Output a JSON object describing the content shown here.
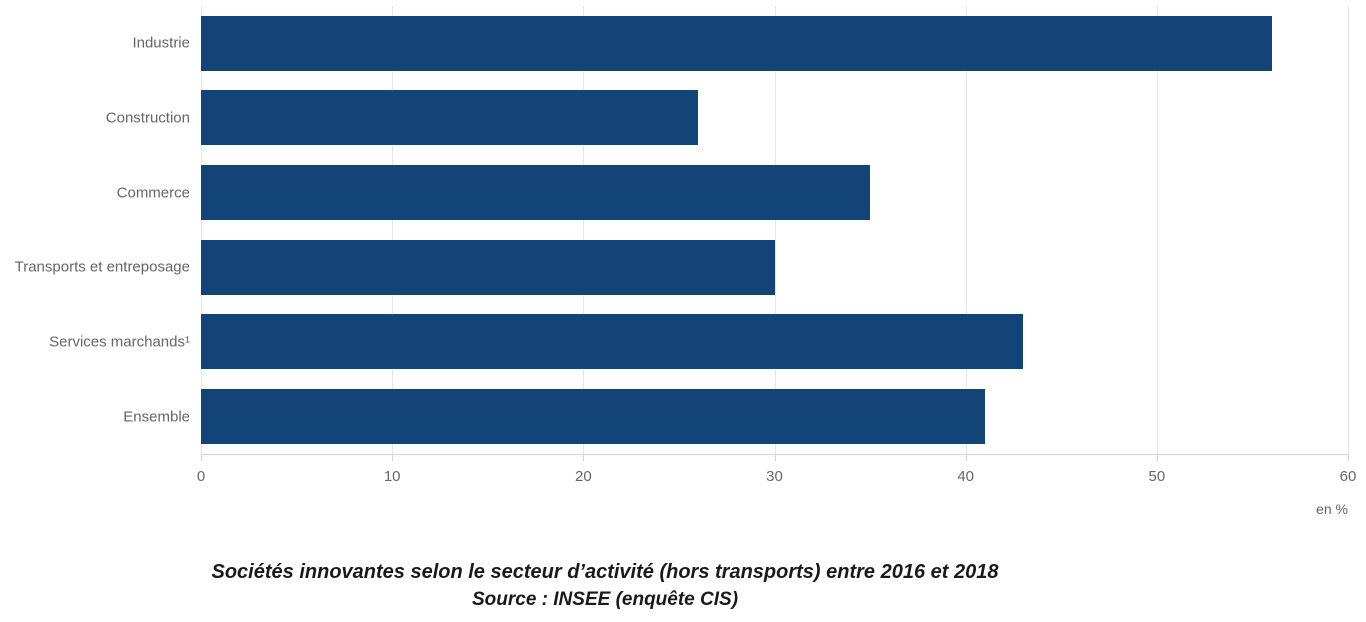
{
  "chart_data": {
    "type": "bar",
    "orientation": "horizontal",
    "categories": [
      "Industrie",
      "Construction",
      "Commerce",
      "Transports et entreposage",
      "Services marchands¹",
      "Ensemble"
    ],
    "values": [
      56,
      26,
      35,
      30,
      43,
      41
    ],
    "xlim": [
      0,
      60
    ],
    "xticks": [
      0,
      10,
      20,
      30,
      40,
      50,
      60
    ],
    "unit_label": "en %",
    "bar_color": "#124478",
    "gridline_color": "#e6e6e6",
    "axis_line_color": "#d4d4d4",
    "label_color": "#666666",
    "grid": true,
    "legend": "none",
    "title": "Sociétés innovantes selon le secteur d’activité (hors transports) entre 2016 et 2018",
    "source": "Source : INSEE (enquête CIS)"
  }
}
